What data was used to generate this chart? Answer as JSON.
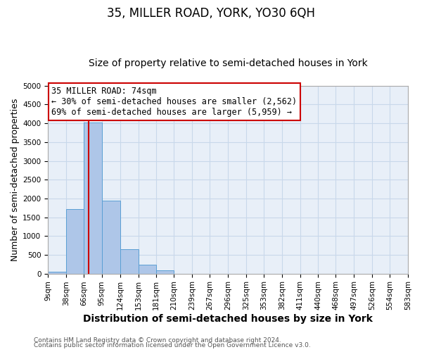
{
  "title": "35, MILLER ROAD, YORK, YO30 6QH",
  "subtitle": "Size of property relative to semi-detached houses in York",
  "xlabel": "Distribution of semi-detached houses by size in York",
  "ylabel": "Number of semi-detached properties",
  "bar_color": "#aec6e8",
  "bar_edge_color": "#5a9fd4",
  "background_color": "#ffffff",
  "plot_bg_color": "#e8eff8",
  "grid_color": "#c8d8ea",
  "vline_x": 74,
  "vline_color": "#cc0000",
  "bin_edges": [
    9,
    38,
    66,
    95,
    124,
    153,
    181,
    210,
    239,
    267,
    296,
    325,
    353,
    382,
    411,
    440,
    468,
    497,
    526,
    554,
    583
  ],
  "bin_counts": [
    50,
    1720,
    4020,
    1940,
    650,
    230,
    80,
    0,
    0,
    0,
    0,
    0,
    0,
    0,
    0,
    0,
    0,
    0,
    0,
    0
  ],
  "xlim": [
    9,
    583
  ],
  "ylim": [
    0,
    5000
  ],
  "yticks": [
    0,
    500,
    1000,
    1500,
    2000,
    2500,
    3000,
    3500,
    4000,
    4500,
    5000
  ],
  "xtick_labels": [
    "9sqm",
    "38sqm",
    "66sqm",
    "95sqm",
    "124sqm",
    "153sqm",
    "181sqm",
    "210sqm",
    "239sqm",
    "267sqm",
    "296sqm",
    "325sqm",
    "353sqm",
    "382sqm",
    "411sqm",
    "440sqm",
    "468sqm",
    "497sqm",
    "526sqm",
    "554sqm",
    "583sqm"
  ],
  "annotation_title": "35 MILLER ROAD: 74sqm",
  "annotation_line1": "← 30% of semi-detached houses are smaller (2,562)",
  "annotation_line2": "69% of semi-detached houses are larger (5,959) →",
  "annotation_box_color": "#ffffff",
  "annotation_box_edge": "#cc0000",
  "footer_line1": "Contains HM Land Registry data © Crown copyright and database right 2024.",
  "footer_line2": "Contains public sector information licensed under the Open Government Licence v3.0.",
  "title_fontsize": 12,
  "subtitle_fontsize": 10,
  "xlabel_fontsize": 10,
  "ylabel_fontsize": 9,
  "tick_fontsize": 7.5,
  "annotation_fontsize": 8.5,
  "footer_fontsize": 6.5
}
